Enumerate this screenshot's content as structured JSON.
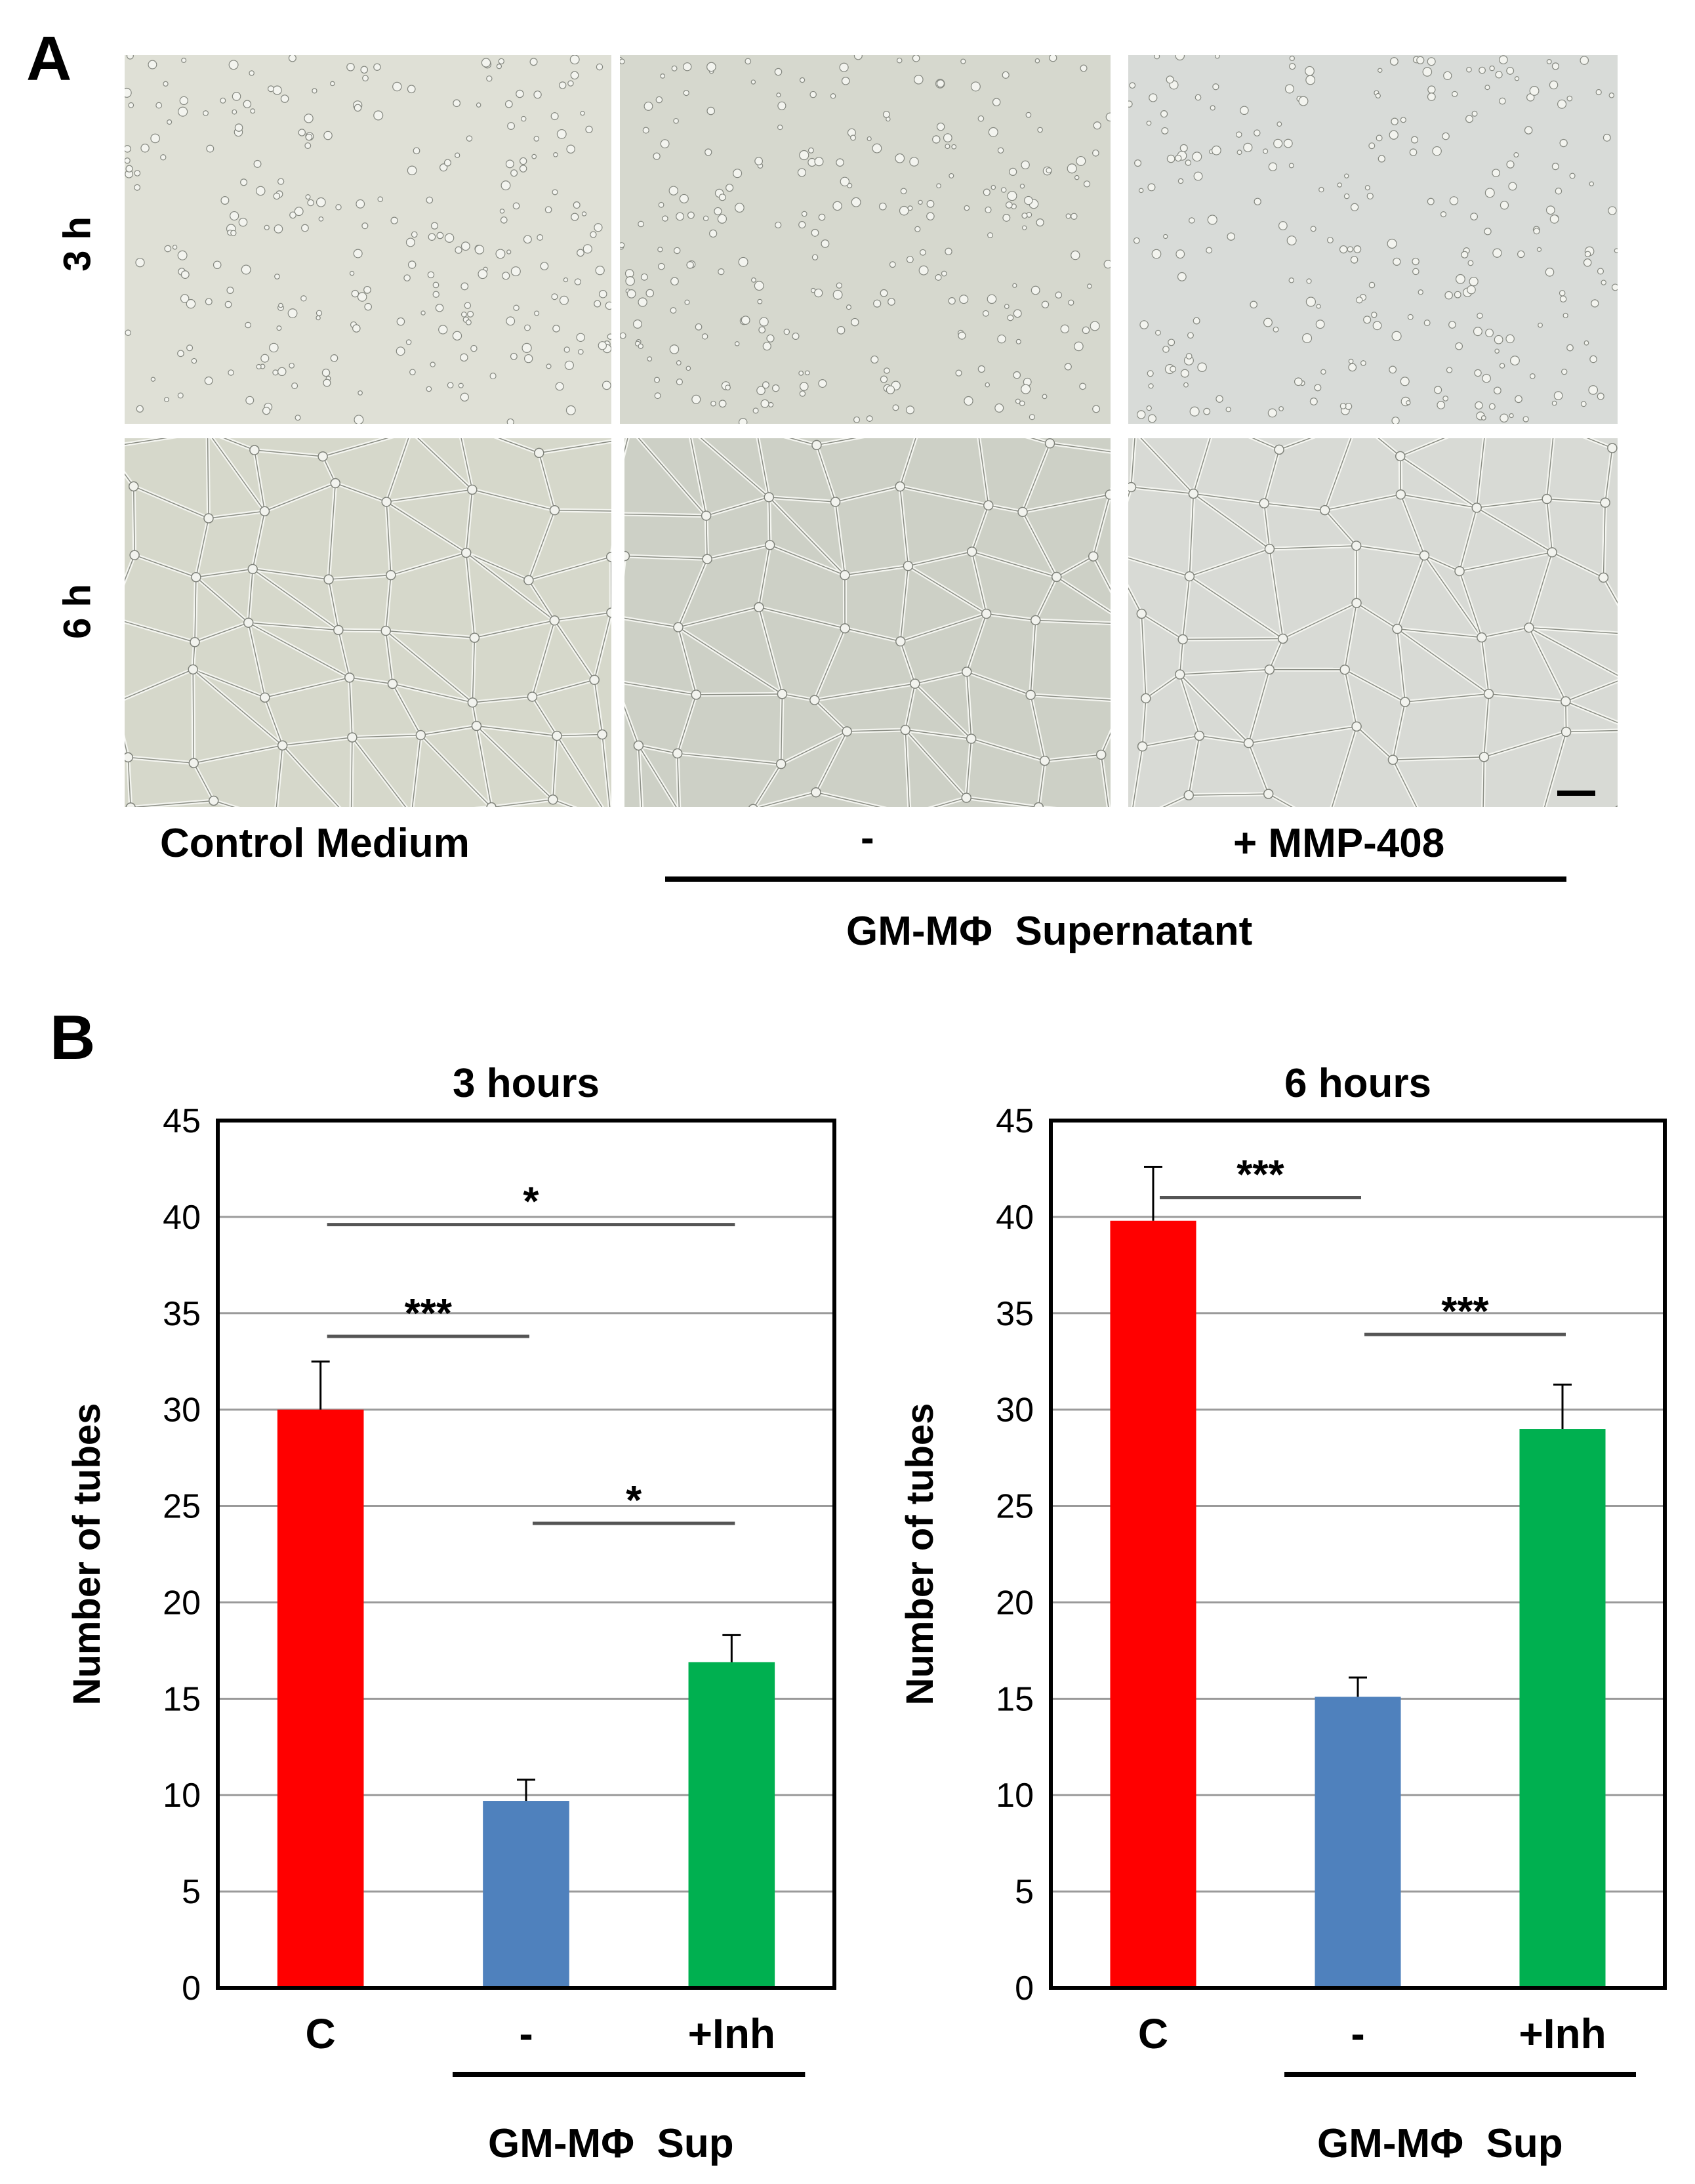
{
  "panel_a": {
    "letter": "A",
    "row_labels": [
      "3 h",
      "6 h"
    ],
    "column_labels": {
      "control": "Control Medium",
      "minus": "-",
      "inhibitor": "+ MMP-408"
    },
    "group_label": "GM-MΦ  Supernatant",
    "image_tones": [
      "#dfe0d6",
      "#d6d8ce",
      "#d8dbd8",
      "#d6d8cb",
      "#cdd0c6",
      "#d8dad5"
    ]
  },
  "panel_b": {
    "letter": "B",
    "group_label": "GM-MΦ  Sup"
  },
  "chart_data": [
    {
      "type": "bar",
      "title": "3 hours",
      "ylabel": "Number of tubes",
      "xlabel": "",
      "ylim": [
        0,
        45
      ],
      "yticks": [
        0,
        5,
        10,
        15,
        20,
        25,
        30,
        35,
        40,
        45
      ],
      "grid": true,
      "categories": [
        "C",
        "-",
        "+Inh"
      ],
      "values": [
        30,
        9.7,
        16.9
      ],
      "errors": [
        2.5,
        1.1,
        1.4
      ],
      "colors": [
        "#ff0000",
        "#4f81bd",
        "#00b050"
      ],
      "significance": [
        {
          "from": 0,
          "to": 2,
          "label": "*",
          "y": 39.6
        },
        {
          "from": 0,
          "to": 1,
          "label": "***",
          "y": 33.8
        },
        {
          "from": 1,
          "to": 2,
          "label": "*",
          "y": 24.1
        }
      ]
    },
    {
      "type": "bar",
      "title": "6 hours",
      "ylabel": "Number of tubes",
      "xlabel": "",
      "ylim": [
        0,
        45
      ],
      "yticks": [
        0,
        5,
        10,
        15,
        20,
        25,
        30,
        35,
        40,
        45
      ],
      "grid": true,
      "categories": [
        "C",
        "-",
        "+Inh"
      ],
      "values": [
        39.8,
        15.1,
        29
      ],
      "errors": [
        2.8,
        1.0,
        2.3
      ],
      "colors": [
        "#ff0000",
        "#4f81bd",
        "#00b050"
      ],
      "significance": [
        {
          "from": 0,
          "to": 1,
          "label": "***",
          "y": 41
        },
        {
          "from": 1,
          "to": 2,
          "label": "***",
          "y": 33.9
        }
      ]
    }
  ]
}
